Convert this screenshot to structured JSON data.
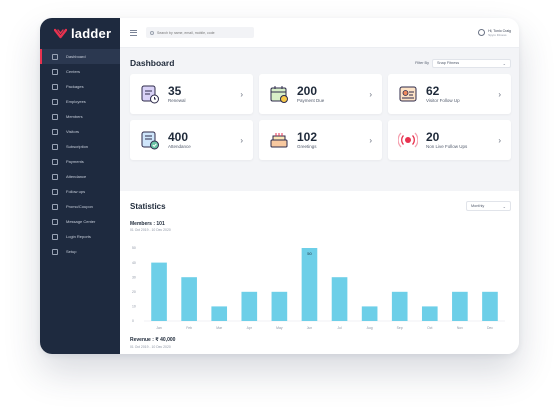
{
  "app": {
    "logo_text": "ladder"
  },
  "sidebar": {
    "items": [
      {
        "label": "Dashboard",
        "icon": "dashboard-icon",
        "active": true
      },
      {
        "label": "Centers",
        "icon": "centers-icon"
      },
      {
        "label": "Packages",
        "icon": "packages-icon"
      },
      {
        "label": "Employees",
        "icon": "employees-icon"
      },
      {
        "label": "Members",
        "icon": "members-icon"
      },
      {
        "label": "Visitors",
        "icon": "visitors-icon"
      },
      {
        "label": "Subscription",
        "icon": "subscription-icon"
      },
      {
        "label": "Payments",
        "icon": "payments-icon"
      },
      {
        "label": "Attendance",
        "icon": "attendance-icon"
      },
      {
        "label": "Follow ups",
        "icon": "follow-ups-icon"
      },
      {
        "label": "Promo/Coupon",
        "icon": "promo-icon"
      },
      {
        "label": "Message Center",
        "icon": "message-icon"
      },
      {
        "label": "Login Reports",
        "icon": "reports-icon"
      },
      {
        "label": "Setup",
        "icon": "setup-icon"
      }
    ]
  },
  "topbar": {
    "search_placeholder": "Search by name, email, mobile, code",
    "user_name": "Hi, Tonio Craig",
    "user_sub": "Spyro Fitness"
  },
  "dashboard": {
    "title": "Dashboard",
    "filter_label": "Filter By",
    "filter_value": "Snap Fitness"
  },
  "cards": [
    {
      "value": "35",
      "label": "Renewal",
      "icon": "renewal-icon"
    },
    {
      "value": "200",
      "label": "Payment Due",
      "icon": "payment-due-icon"
    },
    {
      "value": "62",
      "label": "Visitor Follow Up",
      "icon": "visitor-follow-up-icon"
    },
    {
      "value": "400",
      "label": "Attendance",
      "icon": "attendance-card-icon"
    },
    {
      "value": "102",
      "label": "Greetings",
      "icon": "greetings-icon"
    },
    {
      "value": "20",
      "label": "Non Live Follow Ups",
      "icon": "non-live-icon"
    }
  ],
  "statistics": {
    "title": "Statistics",
    "period": "Monthly",
    "members_title": "Members : 101",
    "members_range": "01 Oct 2019 - 10 Dec 2020",
    "revenue_title": "Revenue : ₹ 40,000",
    "revenue_range": "01 Oct 2019 - 10 Dec 2020"
  },
  "colors": {
    "sidebar": "#1e2a3f",
    "accent": "#e8324f",
    "bar": "#6dcfe8",
    "background": "#f3f4f7"
  },
  "chart_data": {
    "type": "bar",
    "categories": [
      "Jan",
      "Feb",
      "Mar",
      "Apr",
      "May",
      "Jun",
      "Jul",
      "Aug",
      "Sep",
      "Oct",
      "Nov",
      "Dec"
    ],
    "values": [
      40,
      30,
      10,
      20,
      20,
      50,
      30,
      10,
      20,
      10,
      20,
      20
    ],
    "data_labels": [
      null,
      null,
      null,
      null,
      null,
      "50",
      null,
      null,
      null,
      null,
      null,
      null
    ],
    "ylim": [
      0,
      50
    ],
    "yticks": [
      "0",
      "10",
      "20",
      "30",
      "40",
      "50"
    ],
    "grid": false,
    "legend": "none"
  }
}
